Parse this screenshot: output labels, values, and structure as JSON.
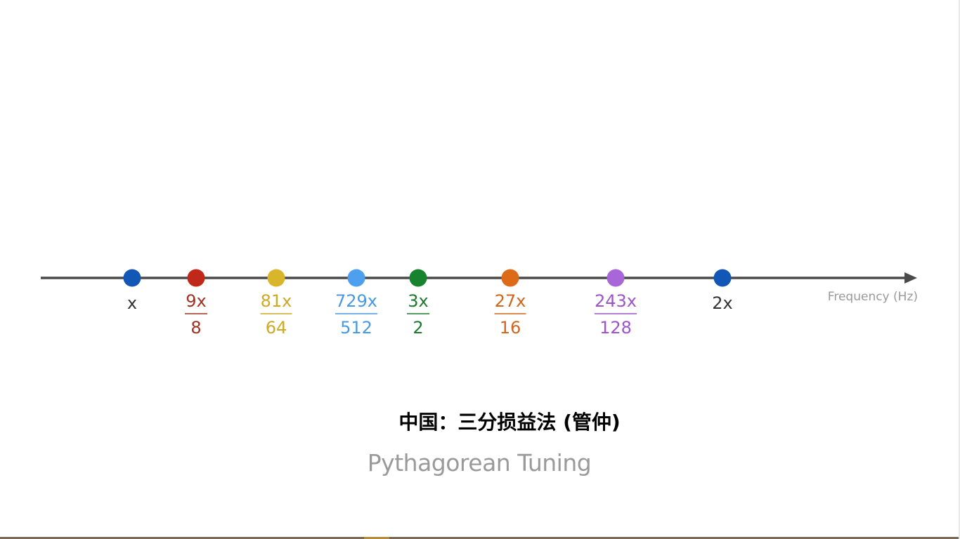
{
  "axis_label": "Frequency (Hz)",
  "title_chinese": "中国：三分损益法 (管仲)",
  "title_english": "Pythagorean Tuning",
  "points": [
    {
      "ratio": 1,
      "numerator": "x",
      "denominator": "",
      "color": "#1257b5"
    },
    {
      "ratio": 1.125,
      "numerator": "9x",
      "denominator": "8",
      "color": "#c0281a"
    },
    {
      "ratio": 1.265625,
      "numerator": "81x",
      "denominator": "64",
      "color": "#d8b52a"
    },
    {
      "ratio": 1.423828,
      "numerator": "729x",
      "denominator": "512",
      "color": "#4ea0ee"
    },
    {
      "ratio": 1.5,
      "numerator": "3x",
      "denominator": "2",
      "color": "#17832e"
    },
    {
      "ratio": 1.6875,
      "numerator": "27x",
      "denominator": "16",
      "color": "#dd6a18"
    },
    {
      "ratio": 1.898438,
      "numerator": "243x",
      "denominator": "128",
      "color": "#a866d8"
    },
    {
      "ratio": 2,
      "numerator": "2x",
      "denominator": "",
      "color": "#1257b5"
    }
  ],
  "colors": {
    "axis": "#4a4a4a",
    "axis_label": "#9a9a9a",
    "plain_label": "#333333",
    "numerator_labels": [
      "#333333",
      "#a3311f",
      "#cfa926",
      "#4a98e0",
      "#1e7a30",
      "#d2651b",
      "#9c55c8",
      "#333333"
    ]
  }
}
